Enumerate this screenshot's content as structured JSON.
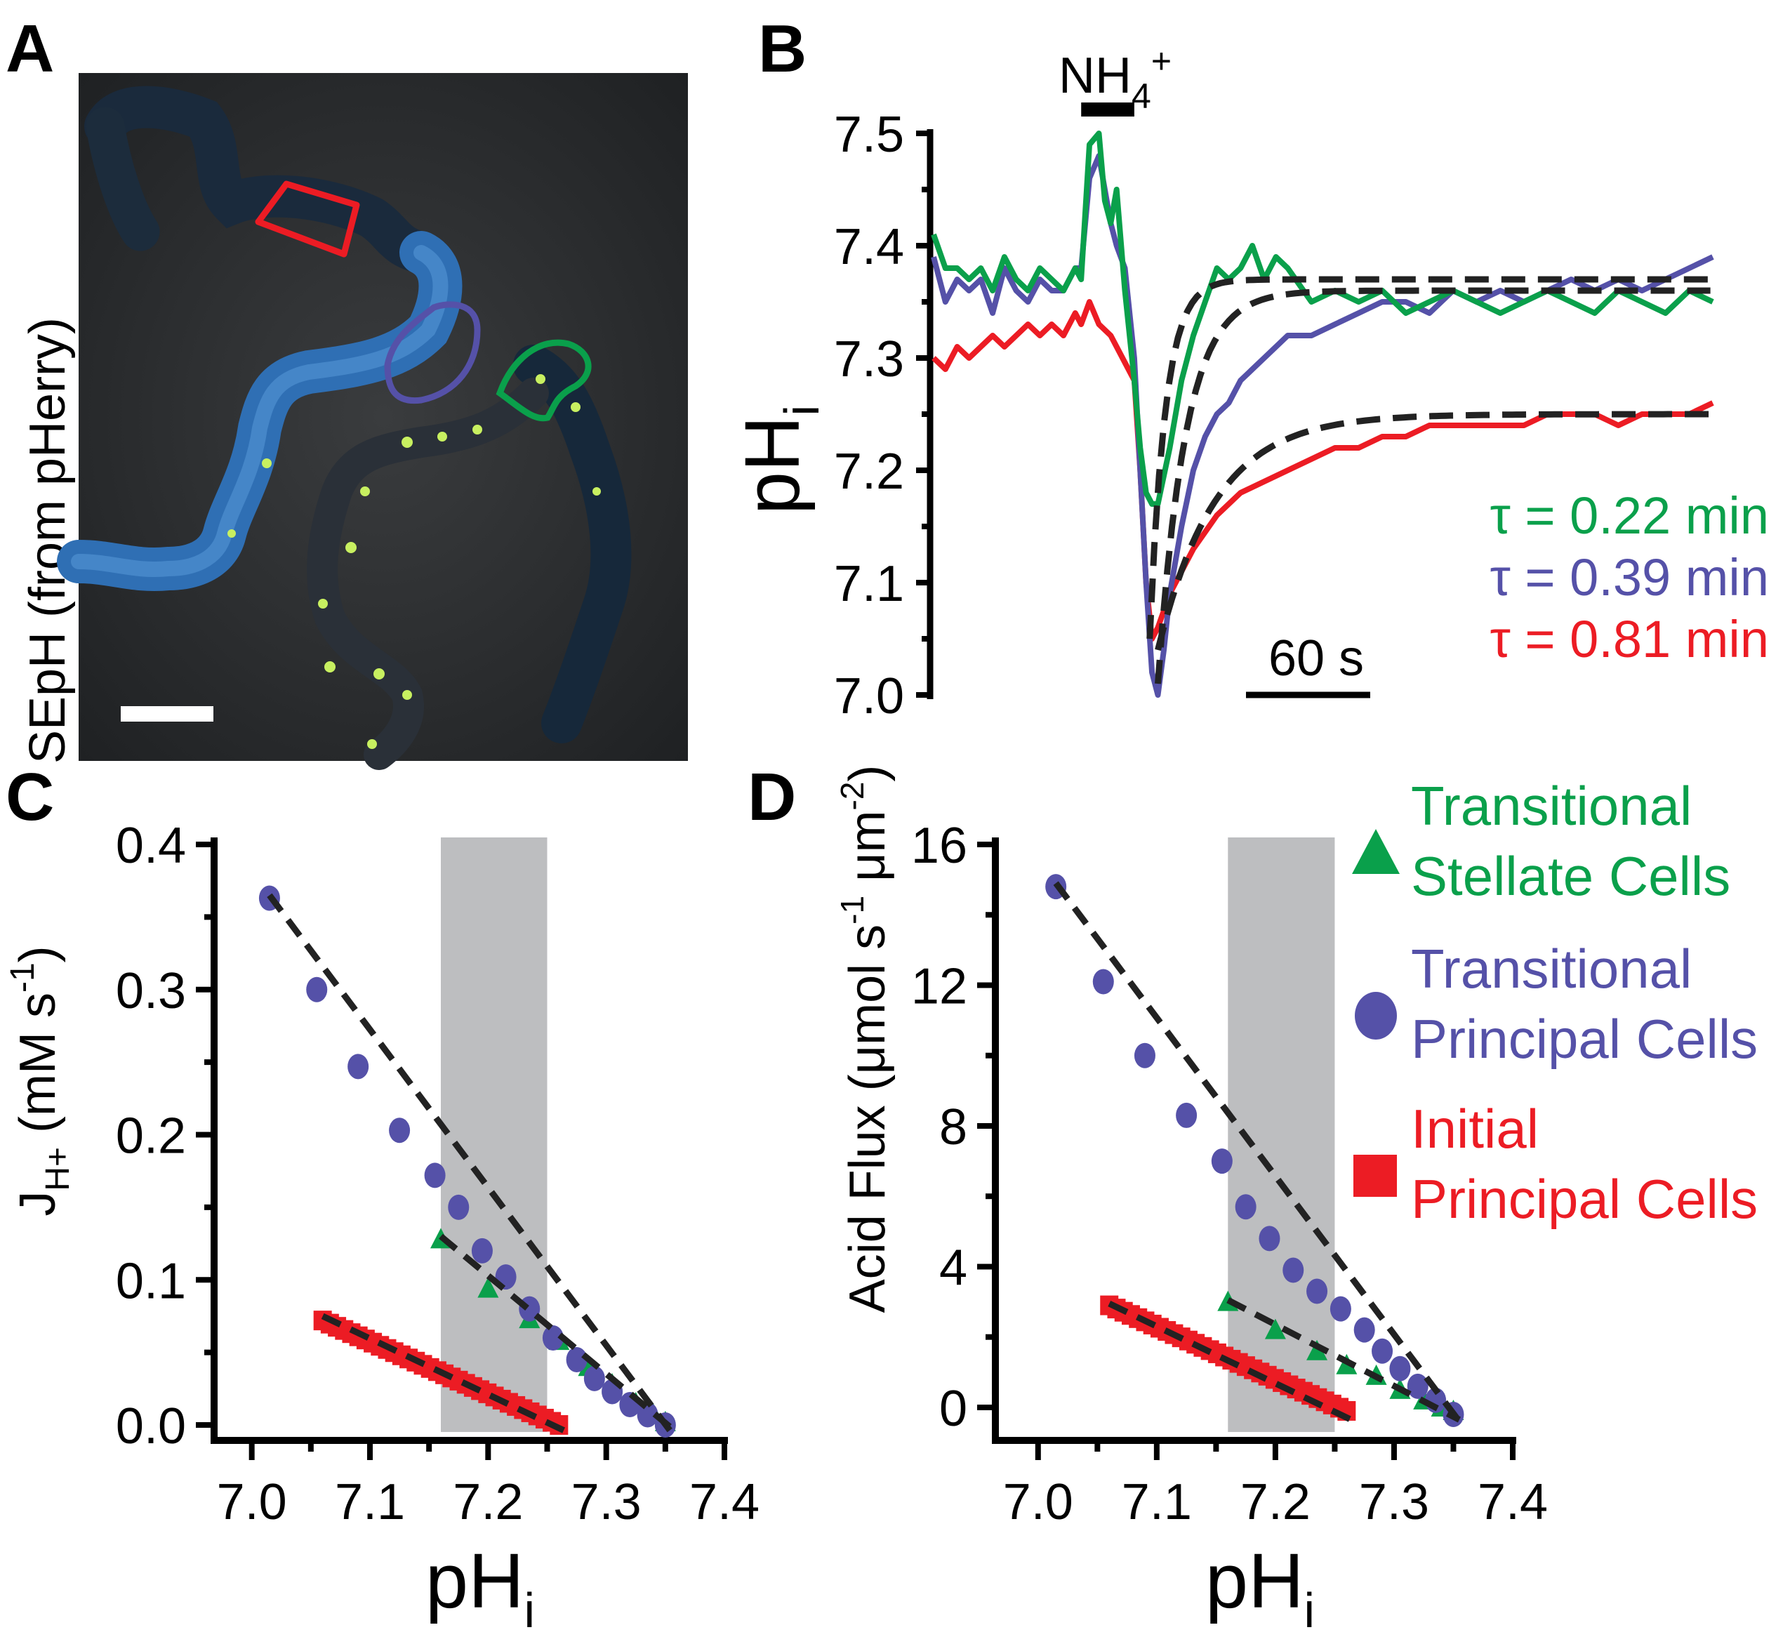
{
  "colors": {
    "green": "#0aa04b",
    "blue": "#5551a8",
    "red": "#ec1c24",
    "fit": "#222222",
    "shade": "#bdbec0",
    "micrograph_bg": "#2b2d2f",
    "tubule_fluor": "#2f6fb4"
  },
  "panel_a": {
    "letter": "A",
    "ylabel": "SEpH (from pHerry)",
    "rois": [
      "red",
      "blue",
      "green"
    ]
  },
  "panel_b": {
    "letter": "B",
    "stim_label": "NH",
    "stim_sub": "4",
    "stim_sup": "+",
    "ylabel_main": "pH",
    "ylabel_sub": "i",
    "scale_label": "60 s",
    "tau_lines": [
      {
        "text": "τ = 0.22 min",
        "color": "green"
      },
      {
        "text": "τ = 0.39 min",
        "color": "blue"
      },
      {
        "text": "τ = 0.81 min",
        "color": "red"
      }
    ]
  },
  "panel_c": {
    "letter": "C",
    "ylabel_main": "J",
    "ylabel_sub": "H+",
    "ylabel_unit": " (mM s",
    "ylabel_unit_sup": "-1",
    "ylabel_close": ")",
    "xlabel_main": "pH",
    "xlabel_sub": "i"
  },
  "panel_d": {
    "letter": "D",
    "ylabel_text": "Acid Flux (μmol s",
    "ylabel_sup1": "-1",
    "ylabel_mid": " μm",
    "ylabel_sup2": "-2",
    "ylabel_close": ")",
    "xlabel_main": "pH",
    "xlabel_sub": "i"
  },
  "legend": [
    {
      "line1": "Transitional",
      "line2": "Stellate Cells",
      "marker": "triangle",
      "color": "green"
    },
    {
      "line1": "Transitional",
      "line2": "Principal Cells",
      "marker": "circle",
      "color": "blue"
    },
    {
      "line1": "Initial",
      "line2": "Principal Cells",
      "marker": "square",
      "color": "red"
    }
  ],
  "chart_data": [
    {
      "id": "B",
      "type": "line",
      "xlabel": "",
      "ylabel": "pHi",
      "ylim": [
        7.0,
        7.5
      ],
      "yticks": [
        "7.0",
        "7.1",
        "7.2",
        "7.3",
        "7.4",
        "7.5"
      ],
      "time_unit": "s",
      "stimulus": {
        "label": "NH4+",
        "start": 125,
        "end": 170
      },
      "series": [
        {
          "color": "green",
          "x": [
            0,
            10,
            20,
            30,
            40,
            50,
            60,
            70,
            80,
            90,
            100,
            110,
            120,
            125,
            132,
            140,
            145,
            150,
            155,
            162,
            170,
            175,
            180,
            185,
            190,
            200,
            210,
            220,
            230,
            240,
            250,
            260,
            270,
            280,
            290,
            300,
            320,
            340,
            360,
            380,
            400,
            420,
            440,
            460,
            480,
            500,
            520,
            540,
            560,
            580,
            600,
            620,
            640,
            660
          ],
          "y": [
            7.41,
            7.38,
            7.38,
            7.37,
            7.38,
            7.36,
            7.39,
            7.37,
            7.36,
            7.38,
            7.37,
            7.36,
            7.38,
            7.37,
            7.49,
            7.5,
            7.44,
            7.42,
            7.45,
            7.36,
            7.28,
            7.22,
            7.18,
            7.17,
            7.17,
            7.22,
            7.28,
            7.32,
            7.35,
            7.38,
            7.37,
            7.38,
            7.4,
            7.37,
            7.39,
            7.38,
            7.35,
            7.36,
            7.35,
            7.36,
            7.34,
            7.35,
            7.36,
            7.35,
            7.34,
            7.35,
            7.36,
            7.35,
            7.34,
            7.36,
            7.35,
            7.34,
            7.36,
            7.35
          ]
        },
        {
          "color": "blue",
          "x": [
            0,
            10,
            20,
            30,
            40,
            50,
            60,
            70,
            80,
            90,
            100,
            110,
            120,
            125,
            132,
            140,
            145,
            150,
            155,
            162,
            170,
            175,
            180,
            185,
            190,
            195,
            200,
            210,
            220,
            230,
            240,
            250,
            260,
            280,
            300,
            320,
            340,
            360,
            380,
            400,
            420,
            440,
            460,
            480,
            500,
            520,
            540,
            560,
            580,
            600,
            620,
            640,
            660
          ],
          "y": [
            7.39,
            7.35,
            7.37,
            7.36,
            7.37,
            7.34,
            7.38,
            7.36,
            7.35,
            7.37,
            7.36,
            7.36,
            7.38,
            7.38,
            7.46,
            7.48,
            7.45,
            7.42,
            7.4,
            7.38,
            7.3,
            7.2,
            7.1,
            7.02,
            7.0,
            7.04,
            7.09,
            7.15,
            7.2,
            7.23,
            7.25,
            7.26,
            7.28,
            7.3,
            7.32,
            7.32,
            7.33,
            7.34,
            7.35,
            7.35,
            7.34,
            7.36,
            7.35,
            7.36,
            7.35,
            7.36,
            7.37,
            7.36,
            7.37,
            7.36,
            7.37,
            7.38,
            7.39
          ]
        },
        {
          "color": "red",
          "x": [
            0,
            10,
            20,
            30,
            40,
            50,
            60,
            70,
            80,
            90,
            100,
            110,
            120,
            125,
            132,
            140,
            150,
            160,
            170,
            175,
            180,
            185,
            190,
            200,
            210,
            220,
            240,
            260,
            280,
            300,
            320,
            340,
            360,
            380,
            400,
            420,
            440,
            460,
            480,
            500,
            520,
            540,
            560,
            580,
            600,
            620,
            640,
            660
          ],
          "y": [
            7.3,
            7.29,
            7.31,
            7.3,
            7.31,
            7.32,
            7.31,
            7.32,
            7.33,
            7.32,
            7.33,
            7.32,
            7.34,
            7.33,
            7.35,
            7.33,
            7.32,
            7.3,
            7.28,
            7.2,
            7.1,
            7.05,
            7.06,
            7.09,
            7.11,
            7.13,
            7.16,
            7.18,
            7.19,
            7.2,
            7.21,
            7.22,
            7.22,
            7.23,
            7.23,
            7.24,
            7.24,
            7.24,
            7.24,
            7.24,
            7.25,
            7.25,
            7.25,
            7.24,
            7.25,
            7.25,
            7.25,
            7.26
          ]
        }
      ],
      "fits": [
        {
          "color": "green",
          "tau_min": 0.22,
          "start": 183,
          "from": 7.05,
          "to": 7.37
        },
        {
          "color": "blue",
          "tau_min": 0.39,
          "start": 190,
          "from": 7.01,
          "to": 7.36
        },
        {
          "color": "red",
          "tau_min": 0.81,
          "start": 190,
          "from": 7.04,
          "to": 7.25
        }
      ]
    },
    {
      "id": "C",
      "type": "scatter",
      "xlabel": "pHi",
      "ylabel": "JH+ (mM s-1)",
      "xlim": [
        6.98,
        7.4
      ],
      "ylim": [
        0.0,
        0.4
      ],
      "xticks": [
        "7.0",
        "7.1",
        "7.2",
        "7.3",
        "7.4"
      ],
      "yticks": [
        "0.0",
        "0.1",
        "0.2",
        "0.3",
        "0.4"
      ],
      "shaded_x": [
        7.16,
        7.25
      ],
      "series": [
        {
          "color": "blue",
          "marker": "circle",
          "x": [
            7.015,
            7.055,
            7.09,
            7.125,
            7.155,
            7.175,
            7.195,
            7.215,
            7.235,
            7.255,
            7.275,
            7.29,
            7.305,
            7.32,
            7.335,
            7.35
          ],
          "y": [
            0.363,
            0.3,
            0.247,
            0.203,
            0.172,
            0.15,
            0.12,
            0.102,
            0.08,
            0.06,
            0.045,
            0.032,
            0.023,
            0.014,
            0.007,
            0.0
          ]
        },
        {
          "color": "green",
          "marker": "triangle",
          "x": [
            7.16,
            7.2,
            7.235,
            7.26,
            7.285,
            7.305,
            7.325,
            7.34,
            7.35
          ],
          "y": [
            0.128,
            0.094,
            0.073,
            0.058,
            0.04,
            0.028,
            0.015,
            0.007,
            0.002
          ]
        },
        {
          "color": "red",
          "marker": "square",
          "x_start": 7.06,
          "x_end": 7.26,
          "n": 34,
          "y_start": 0.072,
          "y_end": 0.0
        }
      ],
      "fits": [
        {
          "color": "blue",
          "x": [
            7.015,
            7.355
          ],
          "y": [
            0.365,
            -0.005
          ]
        },
        {
          "color": "green",
          "x": [
            7.16,
            7.355
          ],
          "y": [
            0.13,
            -0.002
          ]
        },
        {
          "color": "red",
          "x": [
            7.06,
            7.27
          ],
          "y": [
            0.075,
            -0.006
          ]
        }
      ]
    },
    {
      "id": "D",
      "type": "scatter",
      "xlabel": "pHi",
      "ylabel": "Acid Flux (μmol s-1 μm-2)",
      "xlim": [
        6.98,
        7.4
      ],
      "ylim": [
        -0.5,
        16
      ],
      "xticks": [
        "7.0",
        "7.1",
        "7.2",
        "7.3",
        "7.4"
      ],
      "yticks": [
        "0",
        "4",
        "8",
        "12",
        "16"
      ],
      "ytick_values": [
        0,
        4,
        8,
        12,
        16
      ],
      "shaded_x": [
        7.16,
        7.25
      ],
      "series": [
        {
          "color": "blue",
          "marker": "circle",
          "x": [
            7.015,
            7.055,
            7.09,
            7.125,
            7.155,
            7.175,
            7.195,
            7.215,
            7.235,
            7.255,
            7.275,
            7.29,
            7.305,
            7.32,
            7.335,
            7.35
          ],
          "y": [
            14.8,
            12.1,
            10.0,
            8.3,
            7.0,
            5.7,
            4.8,
            3.9,
            3.3,
            2.8,
            2.2,
            1.6,
            1.1,
            0.6,
            0.2,
            -0.2
          ]
        },
        {
          "color": "green",
          "marker": "triangle",
          "x": [
            7.16,
            7.2,
            7.235,
            7.26,
            7.285,
            7.305,
            7.325,
            7.34,
            7.35
          ],
          "y": [
            3.0,
            2.2,
            1.6,
            1.2,
            0.9,
            0.5,
            0.2,
            0.0,
            -0.1
          ]
        },
        {
          "color": "red",
          "marker": "square",
          "x_start": 7.06,
          "x_end": 7.26,
          "n": 34,
          "y_start": 2.9,
          "y_end": -0.1
        }
      ],
      "fits": [
        {
          "color": "blue",
          "x": [
            7.015,
            7.355
          ],
          "y": [
            14.9,
            -0.4
          ]
        },
        {
          "color": "green",
          "x": [
            7.16,
            7.355
          ],
          "y": [
            3.05,
            -0.35
          ]
        },
        {
          "color": "red",
          "x": [
            7.06,
            7.27
          ],
          "y": [
            2.95,
            -0.45
          ]
        }
      ]
    }
  ]
}
